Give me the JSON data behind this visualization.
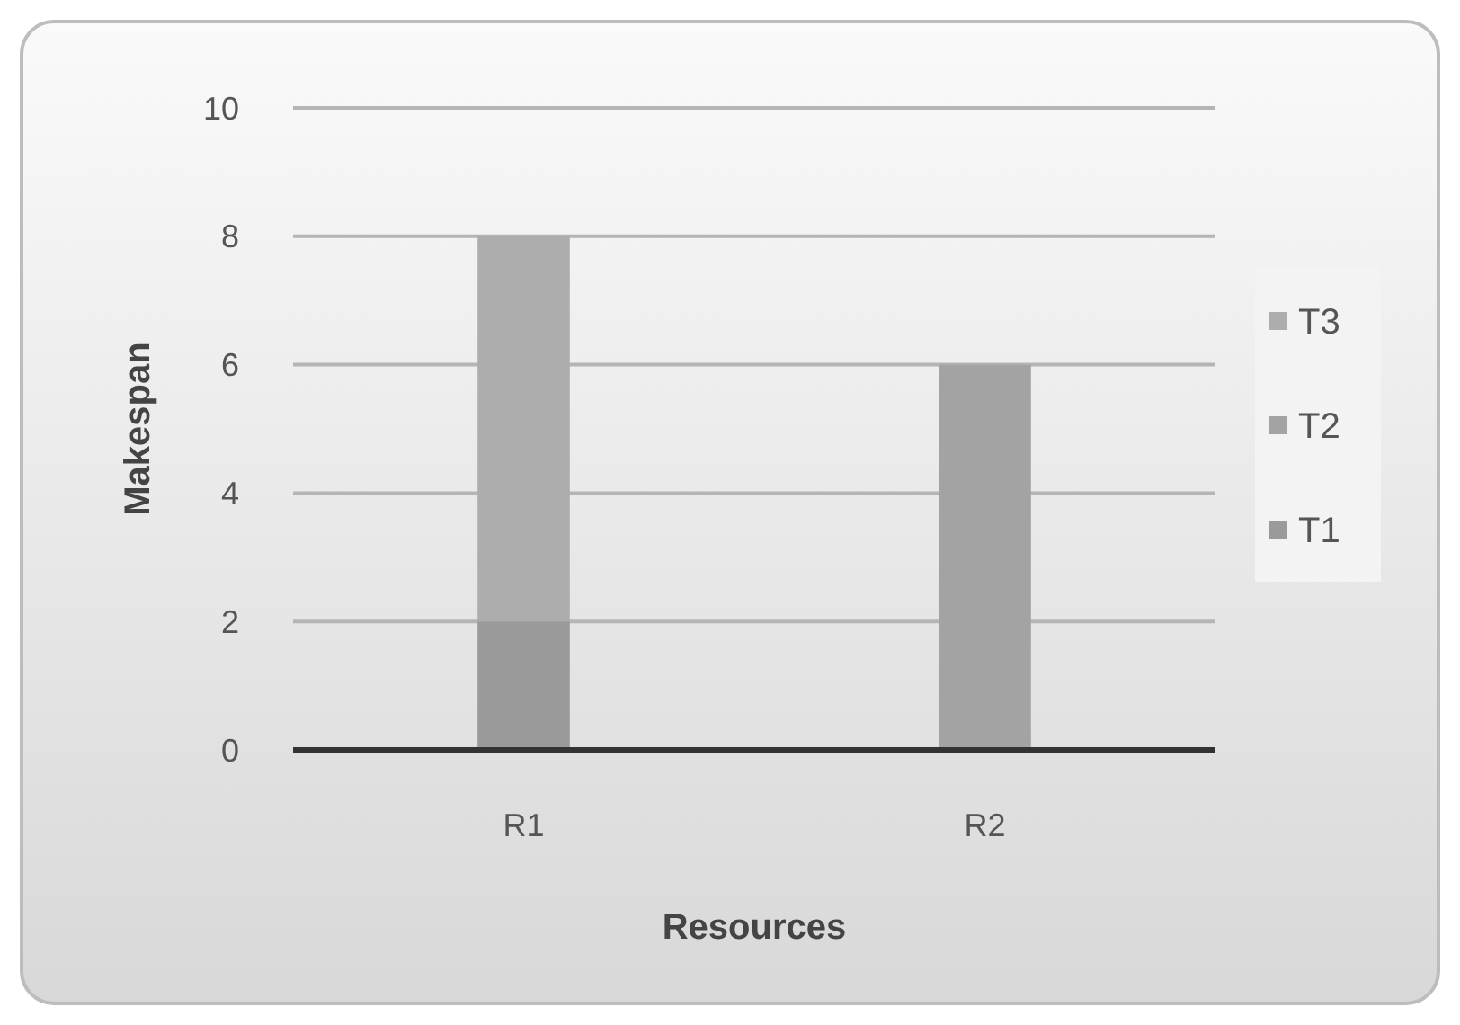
{
  "chart_data": {
    "type": "bar",
    "stacked": true,
    "xlabel": "Resources",
    "ylabel": "Makespan",
    "categories": [
      "R1",
      "R2"
    ],
    "series": [
      {
        "name": "T1",
        "color": "#9a9a9a",
        "values": [
          2,
          0
        ]
      },
      {
        "name": "T2",
        "color": "#a3a3a3",
        "values": [
          0,
          6
        ]
      },
      {
        "name": "T3",
        "color": "#adadad",
        "values": [
          6,
          0
        ]
      }
    ],
    "ylim": [
      0,
      10
    ],
    "yticks": [
      0,
      2,
      4,
      6,
      8,
      10
    ],
    "grid": "y",
    "legend": "right"
  }
}
